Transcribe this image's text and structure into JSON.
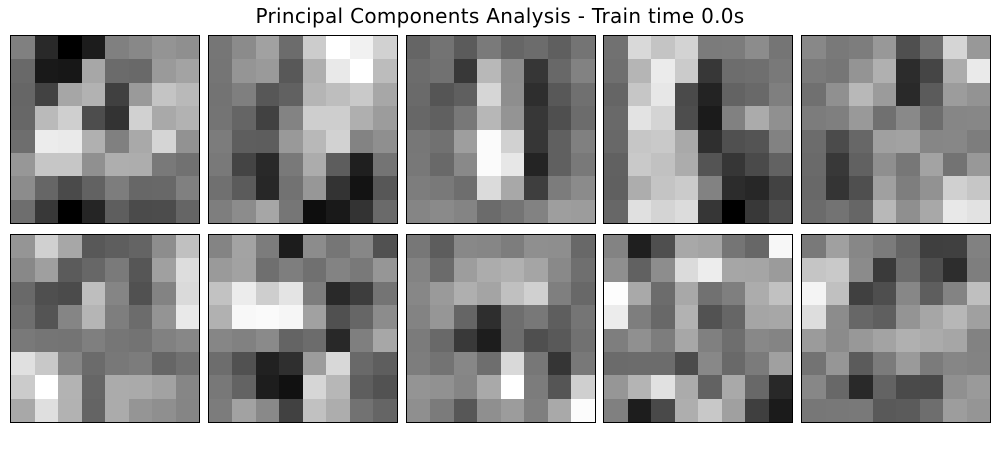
{
  "title": "Principal Components Analysis - Train time 0.0s",
  "components": [
    [
      [
        128,
        41,
        0,
        28,
        128,
        136,
        148,
        143
      ],
      [
        105,
        25,
        23,
        167,
        107,
        105,
        154,
        163
      ],
      [
        102,
        66,
        166,
        178,
        64,
        154,
        196,
        185
      ],
      [
        103,
        186,
        207,
        77,
        51,
        209,
        169,
        178
      ],
      [
        110,
        236,
        234,
        176,
        128,
        169,
        213,
        146
      ],
      [
        151,
        198,
        198,
        144,
        174,
        173,
        121,
        113
      ],
      [
        140,
        102,
        74,
        98,
        125,
        103,
        104,
        128
      ],
      [
        110,
        56,
        0,
        37,
        94,
        75,
        76,
        101
      ]
    ],
    [
      [
        118,
        139,
        161,
        108,
        204,
        255,
        241,
        209
      ],
      [
        117,
        149,
        154,
        88,
        175,
        233,
        255,
        188
      ],
      [
        115,
        127,
        87,
        97,
        181,
        190,
        201,
        167
      ],
      [
        116,
        101,
        65,
        131,
        206,
        206,
        175,
        156
      ],
      [
        124,
        94,
        93,
        153,
        184,
        210,
        131,
        143
      ],
      [
        121,
        68,
        41,
        121,
        172,
        93,
        31,
        116
      ],
      [
        112,
        91,
        39,
        114,
        151,
        51,
        19,
        87
      ],
      [
        126,
        140,
        166,
        118,
        14,
        25,
        51,
        106
      ]
    ],
    [
      [
        101,
        115,
        91,
        122,
        102,
        108,
        95,
        116
      ],
      [
        108,
        113,
        56,
        184,
        140,
        54,
        104,
        130
      ],
      [
        106,
        85,
        95,
        214,
        142,
        46,
        88,
        112
      ],
      [
        103,
        96,
        120,
        183,
        148,
        55,
        79,
        108
      ],
      [
        119,
        113,
        158,
        251,
        209,
        54,
        96,
        128
      ],
      [
        120,
        105,
        137,
        251,
        231,
        36,
        96,
        121
      ],
      [
        125,
        121,
        110,
        219,
        168,
        62,
        124,
        139
      ],
      [
        133,
        138,
        132,
        107,
        116,
        130,
        158,
        156
      ]
    ],
    [
      [
        113,
        217,
        196,
        211,
        123,
        124,
        140,
        117
      ],
      [
        111,
        181,
        235,
        203,
        55,
        109,
        111,
        121
      ],
      [
        101,
        198,
        231,
        74,
        35,
        99,
        105,
        127
      ],
      [
        105,
        227,
        212,
        77,
        27,
        129,
        171,
        144
      ],
      [
        104,
        198,
        201,
        169,
        47,
        80,
        84,
        130
      ],
      [
        97,
        201,
        193,
        172,
        84,
        54,
        74,
        98
      ],
      [
        96,
        173,
        196,
        203,
        130,
        44,
        39,
        66
      ],
      [
        103,
        224,
        212,
        220,
        54,
        0,
        56,
        79
      ]
    ],
    [
      [
        136,
        121,
        125,
        152,
        79,
        112,
        213,
        152
      ],
      [
        122,
        118,
        148,
        176,
        44,
        69,
        172,
        234
      ],
      [
        112,
        144,
        184,
        155,
        41,
        91,
        156,
        147
      ],
      [
        124,
        127,
        153,
        112,
        137,
        109,
        134,
        135
      ],
      [
        108,
        75,
        103,
        160,
        162,
        134,
        135,
        125
      ],
      [
        106,
        56,
        97,
        143,
        119,
        163,
        115,
        152
      ],
      [
        104,
        52,
        79,
        160,
        126,
        146,
        208,
        198
      ],
      [
        107,
        115,
        102,
        184,
        143,
        168,
        232,
        226
      ]
    ],
    [
      [
        149,
        208,
        167,
        88,
        94,
        100,
        141,
        192
      ],
      [
        136,
        159,
        91,
        103,
        122,
        86,
        160,
        221
      ],
      [
        105,
        79,
        75,
        190,
        133,
        81,
        131,
        218
      ],
      [
        110,
        84,
        133,
        181,
        126,
        108,
        148,
        233
      ],
      [
        121,
        117,
        116,
        127,
        118,
        115,
        129,
        135
      ],
      [
        224,
        200,
        133,
        107,
        120,
        124,
        102,
        112
      ],
      [
        203,
        255,
        179,
        102,
        171,
        170,
        162,
        134
      ],
      [
        168,
        223,
        178,
        100,
        171,
        149,
        143,
        133
      ]
    ],
    [
      [
        132,
        163,
        124,
        28,
        140,
        118,
        135,
        81
      ],
      [
        154,
        162,
        111,
        126,
        112,
        131,
        121,
        150
      ],
      [
        194,
        236,
        206,
        228,
        125,
        41,
        61,
        116
      ],
      [
        177,
        248,
        250,
        246,
        161,
        80,
        102,
        140
      ],
      [
        134,
        129,
        138,
        100,
        108,
        40,
        127,
        167
      ],
      [
        109,
        81,
        33,
        47,
        156,
        216,
        105,
        94
      ],
      [
        120,
        99,
        29,
        17,
        214,
        183,
        94,
        82
      ],
      [
        124,
        162,
        137,
        65,
        193,
        173,
        114,
        101
      ]
    ],
    [
      [
        119,
        93,
        136,
        134,
        125,
        143,
        142,
        104
      ],
      [
        131,
        107,
        157,
        172,
        177,
        165,
        137,
        111
      ],
      [
        135,
        154,
        175,
        164,
        192,
        208,
        127,
        104
      ],
      [
        131,
        150,
        101,
        46,
        110,
        120,
        94,
        117
      ],
      [
        123,
        105,
        57,
        29,
        109,
        79,
        89,
        113
      ],
      [
        125,
        115,
        135,
        110,
        217,
        119,
        53,
        120
      ],
      [
        148,
        145,
        133,
        169,
        255,
        124,
        85,
        207
      ],
      [
        143,
        123,
        87,
        143,
        156,
        127,
        169,
        252
      ]
    ],
    [
      [
        131,
        31,
        79,
        168,
        164,
        117,
        103,
        247
      ],
      [
        143,
        97,
        141,
        219,
        237,
        166,
        165,
        155
      ],
      [
        253,
        169,
        108,
        168,
        113,
        127,
        172,
        193
      ],
      [
        236,
        126,
        104,
        178,
        82,
        102,
        165,
        167
      ],
      [
        126,
        144,
        125,
        167,
        128,
        110,
        136,
        132
      ],
      [
        107,
        108,
        108,
        75,
        136,
        105,
        123,
        160
      ],
      [
        150,
        180,
        225,
        171,
        98,
        169,
        104,
        40
      ],
      [
        128,
        29,
        73,
        174,
        200,
        160,
        63,
        27
      ]
    ],
    [
      [
        121,
        160,
        135,
        123,
        101,
        63,
        64,
        129
      ],
      [
        197,
        201,
        139,
        58,
        108,
        78,
        45,
        126
      ],
      [
        244,
        192,
        64,
        78,
        135,
        94,
        131,
        191
      ],
      [
        221,
        140,
        103,
        95,
        148,
        166,
        183,
        160
      ],
      [
        155,
        139,
        152,
        163,
        176,
        171,
        166,
        130
      ],
      [
        115,
        150,
        91,
        123,
        154,
        123,
        134,
        131
      ],
      [
        135,
        104,
        41,
        99,
        74,
        73,
        144,
        154
      ],
      [
        119,
        120,
        121,
        89,
        91,
        110,
        157,
        149
      ]
    ]
  ]
}
